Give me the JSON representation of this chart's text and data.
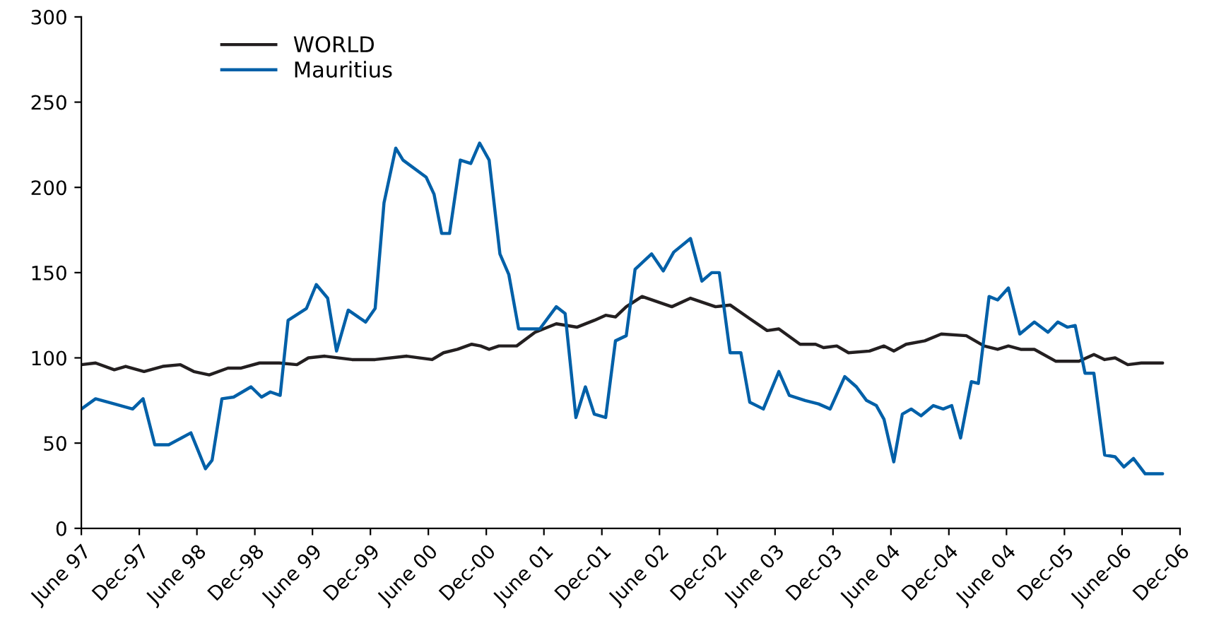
{
  "chart_data": {
    "type": "line",
    "xlim": [
      "1997-06",
      "2006-12"
    ],
    "xticks": [
      {
        "value": "1997-06",
        "label": "June 97"
      },
      {
        "value": "1997-12",
        "label": "Dec-97"
      },
      {
        "value": "1998-06",
        "label": "June 98"
      },
      {
        "value": "1998-12",
        "label": "Dec-98"
      },
      {
        "value": "1999-06",
        "label": "June 99"
      },
      {
        "value": "1999-12",
        "label": "Dec-99"
      },
      {
        "value": "2000-06",
        "label": "June 00"
      },
      {
        "value": "2000-12",
        "label": "Dec-00"
      },
      {
        "value": "2001-06",
        "label": "June 01"
      },
      {
        "value": "2001-12",
        "label": "Dec-01"
      },
      {
        "value": "2002-06",
        "label": "June 02"
      },
      {
        "value": "2002-12",
        "label": "Dec-02"
      },
      {
        "value": "2003-06",
        "label": "June 03"
      },
      {
        "value": "2003-12",
        "label": "Dec-03"
      },
      {
        "value": "2004-06",
        "label": "June 04"
      },
      {
        "value": "2004-12",
        "label": "Dec-04"
      },
      {
        "value": "2005-06",
        "label": "June 04"
      },
      {
        "value": "2005-12",
        "label": "Dec-05"
      },
      {
        "value": "2006-06",
        "label": "June-06"
      },
      {
        "value": "2006-12",
        "label": "Dec-06"
      }
    ],
    "ylim": [
      0,
      300
    ],
    "yticks": [
      0,
      50,
      100,
      150,
      200,
      250,
      300
    ],
    "grid": false,
    "legend": "top left",
    "marker": "none",
    "line_style": "solid",
    "series": [
      {
        "name": "WORLD",
        "color": "#231f20",
        "x": [
          "1997-06-01",
          "1997-07-16",
          "1997-09-13",
          "1997-10-19",
          "1997-12-16",
          "1998-02-13",
          "1998-04-10",
          "1998-05-22",
          "1998-07-10",
          "1998-09-07",
          "1998-10-19",
          "1998-12-16",
          "1999-02-16",
          "1999-04-13",
          "1999-05-19",
          "1999-07-10",
          "1999-10-04",
          "1999-12-16",
          "2000-03-25",
          "2000-06-13",
          "2000-07-19",
          "2000-09-01",
          "2000-10-16",
          "2000-11-13",
          "2000-12-10",
          "2001-01-10",
          "2001-03-07",
          "2001-05-04",
          "2001-07-10",
          "2001-09-13",
          "2001-11-07",
          "2001-12-13",
          "2002-01-13",
          "2002-02-16",
          "2002-04-07",
          "2002-07-10",
          "2002-09-07",
          "2002-11-25",
          "2003-01-10",
          "2003-03-13",
          "2003-05-07",
          "2003-06-13",
          "2003-08-19",
          "2003-10-07",
          "2003-11-01",
          "2003-12-13",
          "2004-01-19",
          "2004-03-25",
          "2004-05-10",
          "2004-06-10",
          "2004-07-19",
          "2004-09-16",
          "2004-11-07",
          "2005-01-25",
          "2005-03-22",
          "2005-05-04",
          "2005-06-07",
          "2005-07-16",
          "2005-08-28",
          "2005-11-04",
          "2006-01-16",
          "2006-03-04",
          "2006-04-07",
          "2006-05-10",
          "2006-06-19",
          "2006-08-01",
          "2006-10-07"
        ],
        "values": [
          96,
          97,
          93,
          95,
          92,
          95,
          96,
          92,
          90,
          94,
          94,
          97,
          97,
          96,
          100,
          101,
          99,
          99,
          101,
          99,
          103,
          105,
          108,
          107,
          105,
          107,
          107,
          115,
          120,
          118,
          122,
          125,
          124,
          130,
          136,
          130,
          135,
          130,
          131,
          123,
          116,
          117,
          108,
          108,
          106,
          107,
          103,
          104,
          107,
          104,
          108,
          110,
          114,
          113,
          107,
          105,
          107,
          105,
          105,
          98,
          98,
          102,
          99,
          100,
          96,
          97,
          97
        ]
      },
      {
        "name": "Mauritius",
        "color": "#0060a8",
        "x": [
          "1997-06-01",
          "1997-07-16",
          "1997-09-13",
          "1997-11-10",
          "1997-12-13",
          "1998-01-19",
          "1998-03-04",
          "1998-05-13",
          "1998-06-28",
          "1998-07-19",
          "1998-08-19",
          "1998-09-25",
          "1998-11-19",
          "1998-12-22",
          "1999-01-19",
          "1999-02-19",
          "1999-03-16",
          "1999-05-13",
          "1999-06-13",
          "1999-07-19",
          "1999-08-16",
          "1999-09-22",
          "1999-11-16",
          "1999-12-16",
          "2000-01-13",
          "2000-02-19",
          "2000-03-13",
          "2000-05-25",
          "2000-06-19",
          "2000-07-13",
          "2000-08-07",
          "2000-09-10",
          "2000-10-13",
          "2000-11-10",
          "2000-12-10",
          "2001-01-13",
          "2001-02-10",
          "2001-03-13",
          "2001-05-19",
          "2001-07-10",
          "2001-08-07",
          "2001-09-10",
          "2001-10-10",
          "2001-11-07",
          "2001-12-13",
          "2002-01-13",
          "2002-02-16",
          "2002-03-16",
          "2002-05-07",
          "2002-06-13",
          "2002-07-16",
          "2002-09-07",
          "2002-10-13",
          "2002-11-13",
          "2002-12-07",
          "2003-01-10",
          "2003-02-13",
          "2003-03-13",
          "2003-04-25",
          "2003-06-13",
          "2003-07-16",
          "2003-09-04",
          "2003-10-16",
          "2003-11-22",
          "2004-01-07",
          "2004-02-13",
          "2004-03-16",
          "2004-04-16",
          "2004-05-10",
          "2004-06-10",
          "2004-07-07",
          "2004-08-04",
          "2004-09-04",
          "2004-10-13",
          "2004-11-13",
          "2004-12-10",
          "2005-01-07",
          "2005-02-10",
          "2005-03-04",
          "2005-04-07",
          "2005-05-04",
          "2005-06-07",
          "2005-07-13",
          "2005-08-28",
          "2005-10-10",
          "2005-11-10",
          "2005-12-10",
          "2006-01-04",
          "2006-02-04",
          "2006-03-04",
          "2006-04-07",
          "2006-05-10",
          "2006-06-07",
          "2006-07-07",
          "2006-08-13",
          "2006-10-07"
        ],
        "values": [
          70,
          76,
          73,
          70,
          76,
          49,
          49,
          56,
          35,
          40,
          76,
          77,
          83,
          77,
          80,
          78,
          122,
          129,
          143,
          135,
          104,
          128,
          121,
          129,
          191,
          223,
          216,
          206,
          196,
          173,
          173,
          216,
          214,
          226,
          216,
          161,
          149,
          117,
          117,
          130,
          126,
          65,
          83,
          67,
          65,
          110,
          113,
          152,
          161,
          151,
          162,
          170,
          145,
          150,
          150,
          103,
          103,
          74,
          70,
          92,
          78,
          75,
          73,
          70,
          89,
          83,
          75,
          72,
          64,
          39,
          67,
          70,
          66,
          72,
          70,
          72,
          53,
          86,
          85,
          136,
          134,
          141,
          114,
          121,
          115,
          121,
          118,
          119,
          91,
          91,
          43,
          42,
          36,
          41,
          32,
          32
        ]
      }
    ]
  }
}
